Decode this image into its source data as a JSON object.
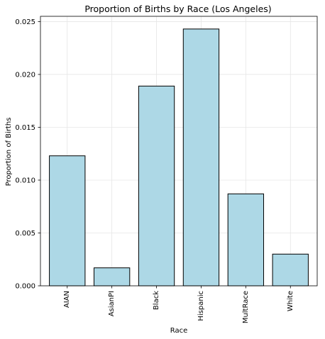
{
  "chart_data": {
    "type": "bar",
    "title": "Proportion of Births by Race (Los Angeles)",
    "xlabel": "Race",
    "ylabel": "Proportion of Births",
    "categories": [
      "AIAN",
      "AsianPI",
      "Black",
      "Hispanic",
      "MultRace",
      "White"
    ],
    "values": [
      0.0123,
      0.0017,
      0.0189,
      0.0243,
      0.0087,
      0.003
    ],
    "ylim": [
      0,
      0.0255
    ],
    "yticks": [
      0.0,
      0.005,
      0.01,
      0.015,
      0.02,
      0.025
    ],
    "ytick_labels": [
      "0.000",
      "0.005",
      "0.010",
      "0.015",
      "0.020",
      "0.025"
    ],
    "grid": true,
    "bar_color": "#add8e6",
    "edge_color": "#000000"
  }
}
